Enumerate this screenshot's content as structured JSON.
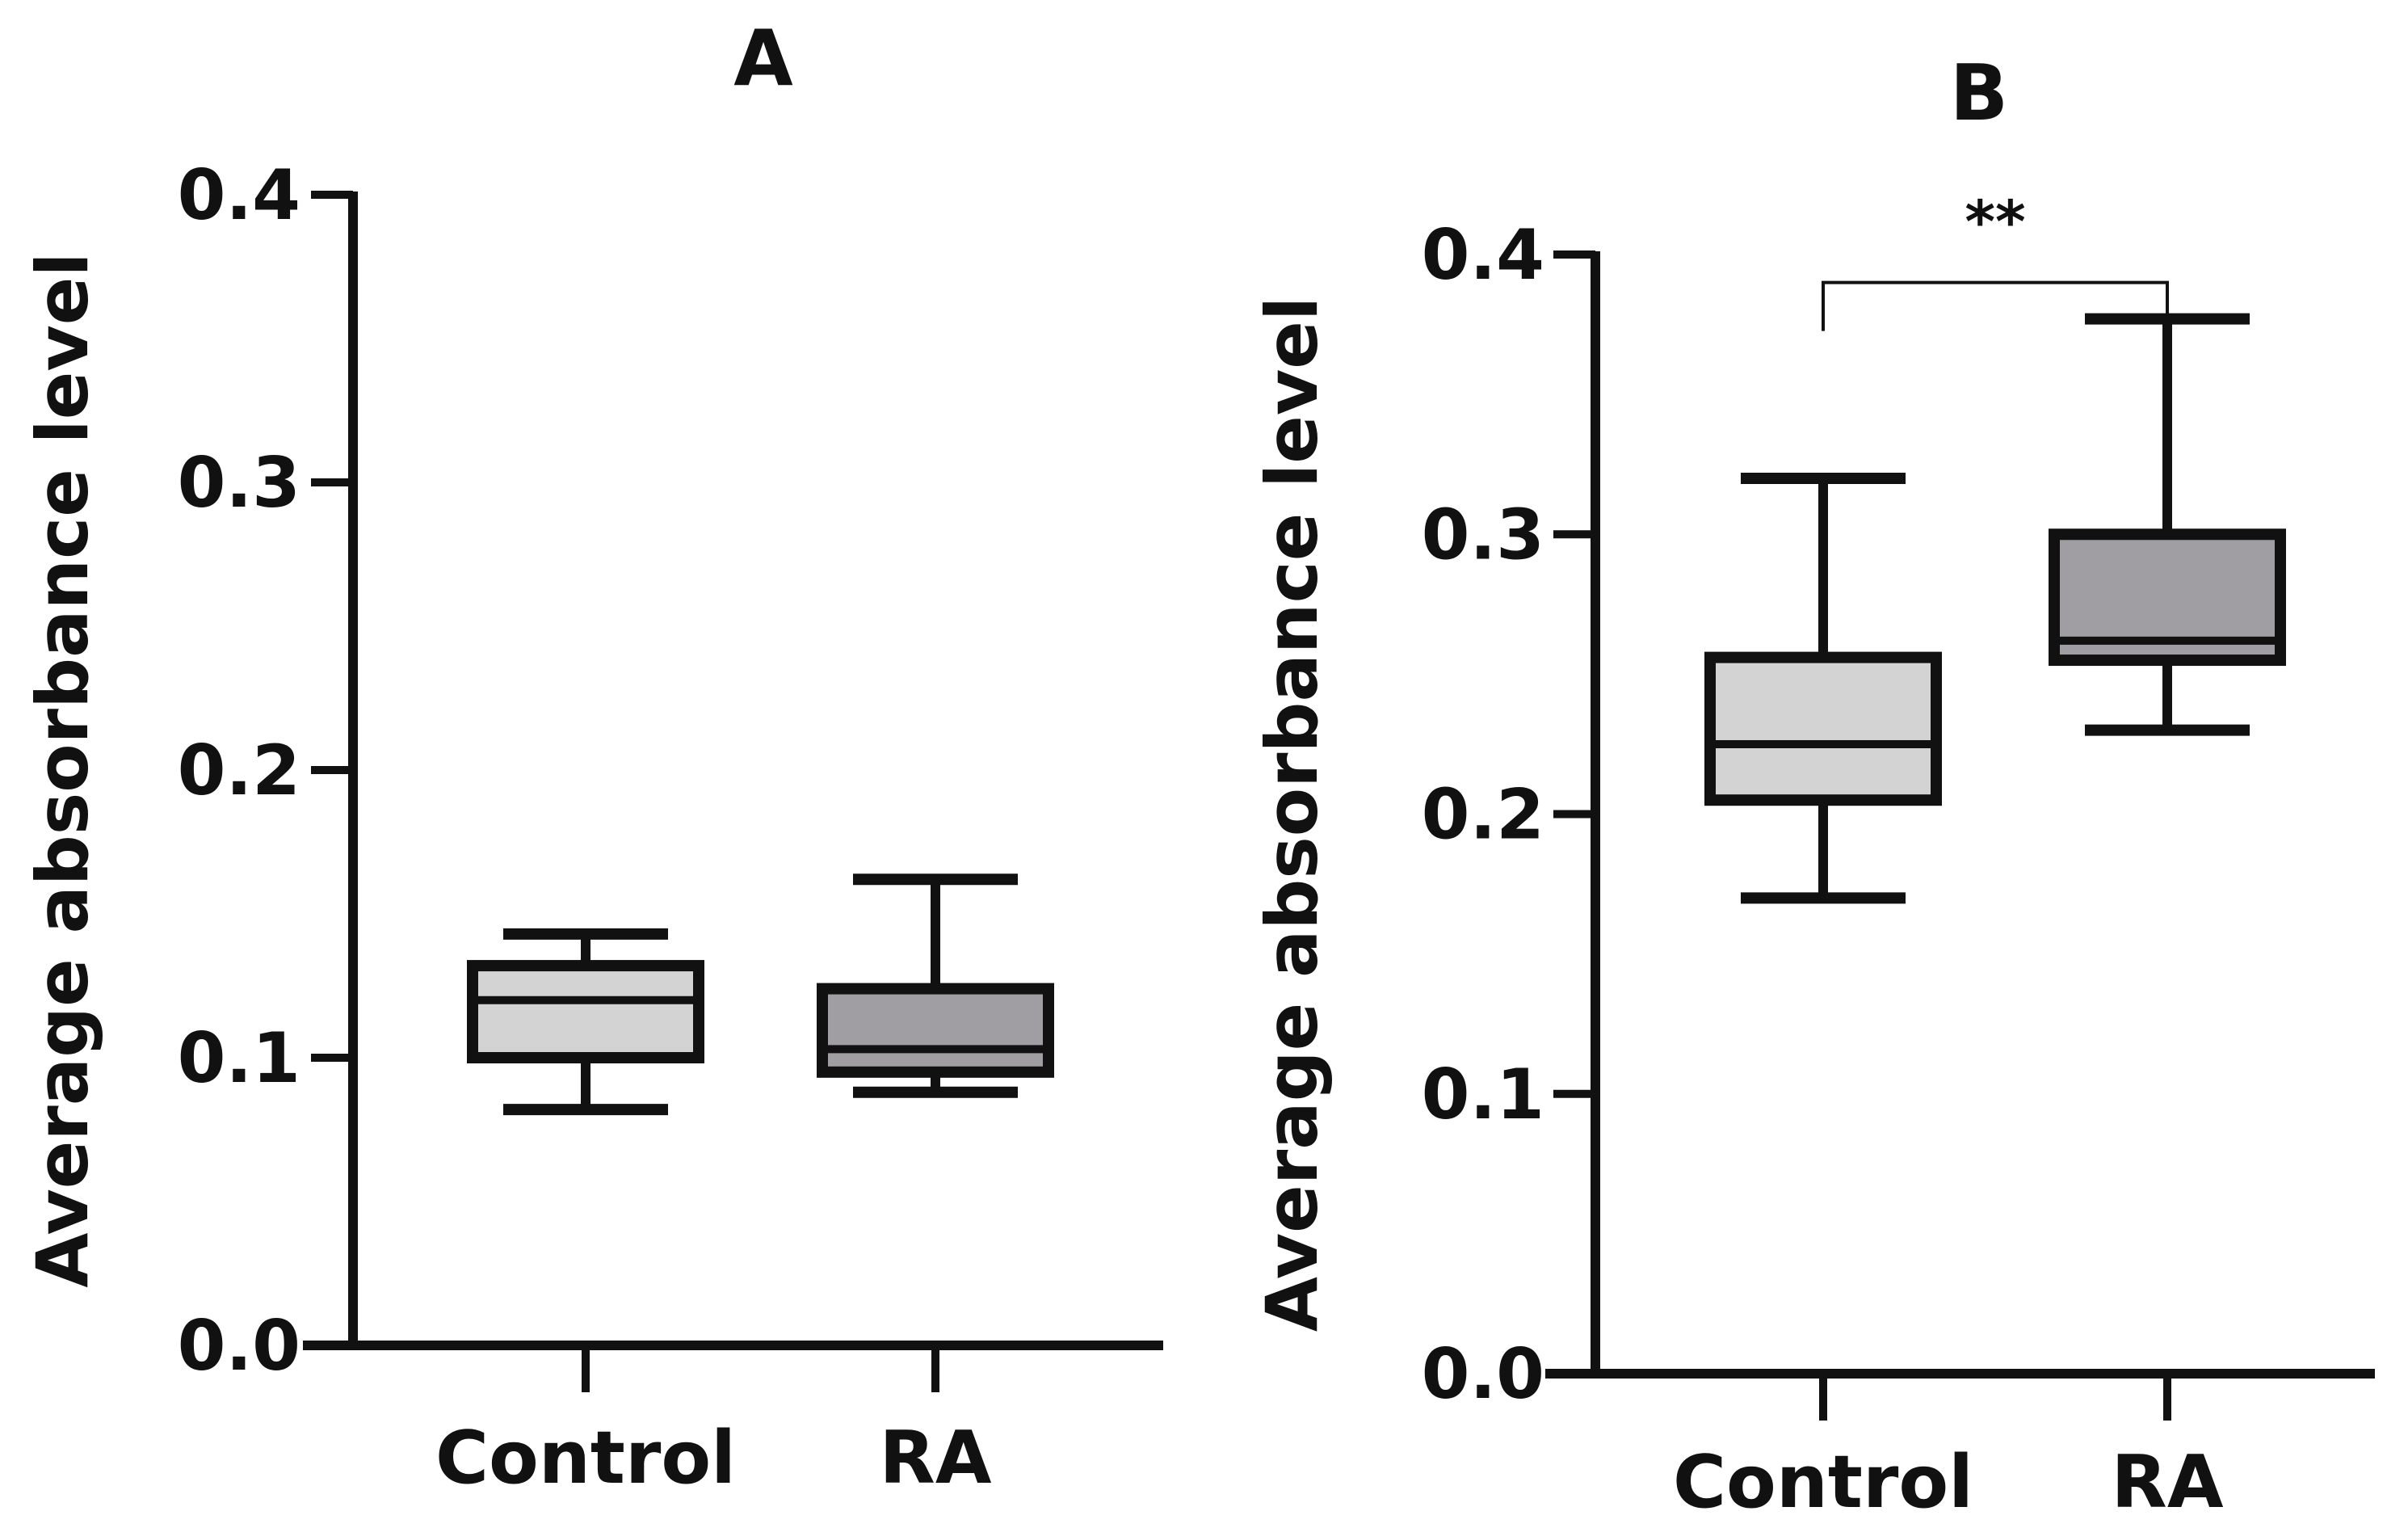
{
  "chart_data": [
    {
      "type": "boxplot",
      "panel_label": "A",
      "ylabel": "Average absorbance level",
      "xlabel": "",
      "ylim": [
        0.0,
        0.4
      ],
      "yticks": [
        0.0,
        0.1,
        0.2,
        0.3,
        0.4
      ],
      "ytick_labels": [
        "0.0",
        "0.1",
        "0.2",
        "0.3",
        "0.4"
      ],
      "categories": [
        "Control",
        "RA"
      ],
      "boxes": [
        {
          "name": "Control",
          "min": 0.082,
          "q1": 0.1,
          "median": 0.12,
          "q3": 0.132,
          "max": 0.143,
          "color": "#d3d3d3"
        },
        {
          "name": "RA",
          "min": 0.088,
          "q1": 0.095,
          "median": 0.103,
          "q3": 0.124,
          "max": 0.162,
          "color": "#a09ea3"
        }
      ],
      "significance": null
    },
    {
      "type": "boxplot",
      "panel_label": "B",
      "ylabel": "Average absorbance level",
      "xlabel": "",
      "ylim": [
        0.0,
        0.4
      ],
      "yticks": [
        0.0,
        0.1,
        0.2,
        0.3,
        0.4
      ],
      "ytick_labels": [
        "0.0",
        "0.1",
        "0.2",
        "0.3",
        "0.4"
      ],
      "categories": [
        "Control",
        "RA"
      ],
      "boxes": [
        {
          "name": "Control",
          "min": 0.17,
          "q1": 0.205,
          "median": 0.225,
          "q3": 0.256,
          "max": 0.32,
          "color": "#d3d3d3"
        },
        {
          "name": "RA",
          "min": 0.23,
          "q1": 0.255,
          "median": 0.262,
          "q3": 0.3,
          "max": 0.377,
          "color": "#a09ea3"
        }
      ],
      "significance": {
        "label": "**",
        "between": [
          "Control",
          "RA"
        ],
        "y": 0.39
      }
    }
  ]
}
